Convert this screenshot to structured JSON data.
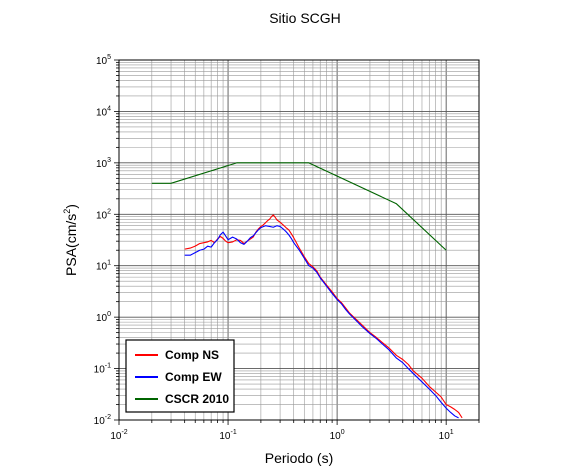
{
  "chart_data": {
    "type": "line",
    "title": "Sitio SCGH",
    "xlabel": "Periodo (s)",
    "ylabel_prefix": "PSA(cm/s",
    "ylabel_exp": "2",
    "ylabel_suffix": ")",
    "x_scale": "log",
    "y_scale": "log",
    "xlim": [
      0.01,
      20
    ],
    "ylim": [
      0.01,
      100000
    ],
    "grid": true,
    "legend_position": "bottom-left",
    "x_ticks": [
      {
        "base": "10",
        "exp": "-2",
        "value": 0.01
      },
      {
        "base": "10",
        "exp": "-1",
        "value": 0.1
      },
      {
        "base": "10",
        "exp": "0",
        "value": 1
      },
      {
        "base": "10",
        "exp": "1",
        "value": 10
      }
    ],
    "y_ticks": [
      {
        "base": "10",
        "exp": "-2",
        "value": 0.01
      },
      {
        "base": "10",
        "exp": "-1",
        "value": 0.1
      },
      {
        "base": "10",
        "exp": "0",
        "value": 1
      },
      {
        "base": "10",
        "exp": "1",
        "value": 10
      },
      {
        "base": "10",
        "exp": "2",
        "value": 100
      },
      {
        "base": "10",
        "exp": "3",
        "value": 1000
      },
      {
        "base": "10",
        "exp": "4",
        "value": 10000
      },
      {
        "base": "10",
        "exp": "5",
        "value": 100000
      }
    ],
    "series": [
      {
        "name": "Comp NS",
        "color": "#ff0000",
        "points": [
          [
            0.04,
            21
          ],
          [
            0.045,
            22
          ],
          [
            0.05,
            24
          ],
          [
            0.055,
            27
          ],
          [
            0.06,
            28
          ],
          [
            0.065,
            29
          ],
          [
            0.07,
            31
          ],
          [
            0.075,
            28
          ],
          [
            0.08,
            33
          ],
          [
            0.085,
            37
          ],
          [
            0.09,
            34
          ],
          [
            0.095,
            30
          ],
          [
            0.1,
            28
          ],
          [
            0.11,
            29
          ],
          [
            0.12,
            32
          ],
          [
            0.13,
            31
          ],
          [
            0.14,
            27
          ],
          [
            0.15,
            30
          ],
          [
            0.16,
            33
          ],
          [
            0.17,
            36
          ],
          [
            0.18,
            45
          ],
          [
            0.19,
            52
          ],
          [
            0.2,
            58
          ],
          [
            0.21,
            62
          ],
          [
            0.22,
            68
          ],
          [
            0.23,
            75
          ],
          [
            0.24,
            80
          ],
          [
            0.25,
            90
          ],
          [
            0.26,
            97
          ],
          [
            0.27,
            88
          ],
          [
            0.28,
            78
          ],
          [
            0.3,
            70
          ],
          [
            0.32,
            62
          ],
          [
            0.34,
            55
          ],
          [
            0.36,
            50
          ],
          [
            0.38,
            42
          ],
          [
            0.4,
            35
          ],
          [
            0.45,
            22
          ],
          [
            0.5,
            15
          ],
          [
            0.55,
            11
          ],
          [
            0.6,
            9.5
          ],
          [
            0.65,
            8
          ],
          [
            0.7,
            6
          ],
          [
            0.75,
            5
          ],
          [
            0.8,
            4.2
          ],
          [
            0.9,
            3.1
          ],
          [
            1.0,
            2.3
          ],
          [
            1.1,
            1.9
          ],
          [
            1.2,
            1.5
          ],
          [
            1.3,
            1.2
          ],
          [
            1.5,
            0.9
          ],
          [
            1.7,
            0.7
          ],
          [
            2.0,
            0.5
          ],
          [
            2.3,
            0.4
          ],
          [
            2.6,
            0.32
          ],
          [
            3.0,
            0.25
          ],
          [
            3.5,
            0.18
          ],
          [
            4.0,
            0.15
          ],
          [
            4.5,
            0.12
          ],
          [
            5.0,
            0.09
          ],
          [
            6.0,
            0.065
          ],
          [
            7.0,
            0.045
          ],
          [
            8.0,
            0.035
          ],
          [
            9.0,
            0.028
          ],
          [
            10.0,
            0.02
          ],
          [
            11.0,
            0.018
          ],
          [
            12.0,
            0.016
          ],
          [
            13.0,
            0.014
          ],
          [
            14.0,
            0.011
          ]
        ]
      },
      {
        "name": "Comp EW",
        "color": "#0000ff",
        "points": [
          [
            0.04,
            16
          ],
          [
            0.045,
            16
          ],
          [
            0.05,
            18
          ],
          [
            0.055,
            20
          ],
          [
            0.06,
            21
          ],
          [
            0.065,
            24
          ],
          [
            0.07,
            23
          ],
          [
            0.075,
            28
          ],
          [
            0.08,
            32
          ],
          [
            0.085,
            40
          ],
          [
            0.09,
            45
          ],
          [
            0.095,
            38
          ],
          [
            0.1,
            32
          ],
          [
            0.11,
            36
          ],
          [
            0.12,
            33
          ],
          [
            0.13,
            28
          ],
          [
            0.14,
            26
          ],
          [
            0.15,
            30
          ],
          [
            0.16,
            35
          ],
          [
            0.17,
            38
          ],
          [
            0.18,
            44
          ],
          [
            0.19,
            50
          ],
          [
            0.2,
            55
          ],
          [
            0.22,
            60
          ],
          [
            0.24,
            58
          ],
          [
            0.26,
            56
          ],
          [
            0.28,
            60
          ],
          [
            0.3,
            58
          ],
          [
            0.32,
            52
          ],
          [
            0.34,
            46
          ],
          [
            0.36,
            40
          ],
          [
            0.38,
            34
          ],
          [
            0.4,
            28
          ],
          [
            0.45,
            20
          ],
          [
            0.5,
            14
          ],
          [
            0.55,
            10
          ],
          [
            0.6,
            9
          ],
          [
            0.65,
            7.5
          ],
          [
            0.7,
            5.8
          ],
          [
            0.75,
            4.8
          ],
          [
            0.8,
            4.0
          ],
          [
            0.9,
            2.9
          ],
          [
            1.0,
            2.2
          ],
          [
            1.1,
            1.8
          ],
          [
            1.2,
            1.4
          ],
          [
            1.3,
            1.15
          ],
          [
            1.5,
            0.85
          ],
          [
            1.7,
            0.65
          ],
          [
            2.0,
            0.48
          ],
          [
            2.3,
            0.38
          ],
          [
            2.6,
            0.3
          ],
          [
            3.0,
            0.23
          ],
          [
            3.5,
            0.16
          ],
          [
            4.0,
            0.13
          ],
          [
            4.5,
            0.1
          ],
          [
            5.0,
            0.08
          ],
          [
            6.0,
            0.055
          ],
          [
            7.0,
            0.04
          ],
          [
            8.0,
            0.03
          ],
          [
            9.0,
            0.022
          ],
          [
            10.0,
            0.017
          ],
          [
            11.0,
            0.014
          ],
          [
            12.0,
            0.012
          ],
          [
            13.0,
            0.011
          ]
        ]
      },
      {
        "name": "CSCR 2010",
        "color": "#006400",
        "points": [
          [
            0.02,
            400
          ],
          [
            0.03,
            400
          ],
          [
            0.12,
            1000
          ],
          [
            0.55,
            1000
          ],
          [
            3.5,
            160
          ],
          [
            10.0,
            20
          ]
        ]
      }
    ]
  }
}
